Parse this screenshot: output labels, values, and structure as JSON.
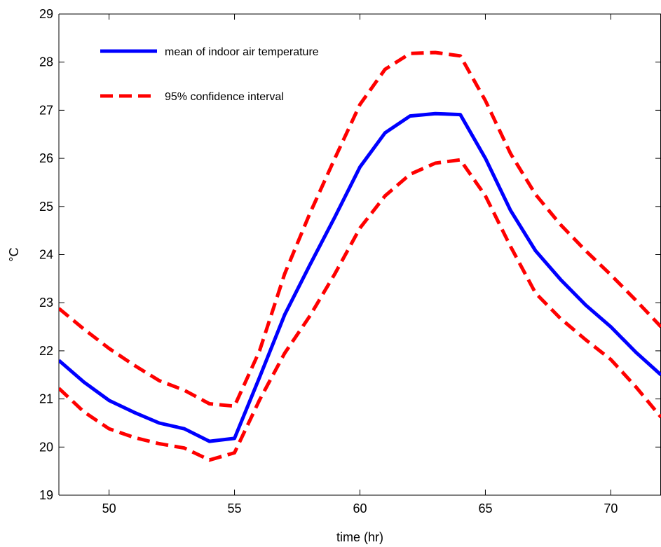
{
  "chart_data": {
    "type": "line",
    "xlabel": "time (hr)",
    "ylabel": "°C",
    "xlim": [
      48,
      72
    ],
    "ylim": [
      19,
      29
    ],
    "xticks": [
      50,
      55,
      60,
      65,
      70
    ],
    "yticks": [
      19,
      20,
      21,
      22,
      23,
      24,
      25,
      26,
      27,
      28,
      29
    ],
    "grid": false,
    "legend_position": "top-left",
    "x": [
      48,
      49,
      50,
      51,
      52,
      53,
      54,
      55,
      56,
      57,
      58,
      59,
      60,
      61,
      62,
      63,
      64,
      65,
      66,
      67,
      68,
      69,
      70,
      71,
      72
    ],
    "series": [
      {
        "name": "mean of indoor air temperature",
        "color": "#0000ff",
        "style": "solid",
        "values": [
          21.8,
          21.35,
          20.97,
          20.72,
          20.5,
          20.38,
          20.12,
          20.18,
          21.45,
          22.75,
          23.78,
          24.78,
          25.82,
          26.53,
          26.88,
          26.93,
          26.91,
          26.0,
          24.92,
          24.08,
          23.48,
          22.95,
          22.5,
          21.97,
          21.5
        ]
      },
      {
        "name": "95% confidence  interval",
        "color": "#ff0000",
        "style": "dashed",
        "values": [
          22.88,
          22.45,
          22.05,
          21.7,
          21.38,
          21.18,
          20.9,
          20.85,
          22.0,
          23.6,
          24.85,
          26.0,
          27.12,
          27.85,
          28.18,
          28.2,
          28.13,
          27.2,
          26.1,
          25.25,
          24.62,
          24.08,
          23.58,
          23.05,
          22.5
        ]
      },
      {
        "name": "",
        "color": "#ff0000",
        "style": "dashed",
        "values": [
          21.22,
          20.73,
          20.38,
          20.2,
          20.07,
          19.98,
          19.73,
          19.88,
          20.98,
          21.95,
          22.72,
          23.6,
          24.55,
          25.22,
          25.67,
          25.9,
          25.97,
          25.22,
          24.17,
          23.2,
          22.67,
          22.23,
          21.82,
          21.25,
          20.62
        ]
      }
    ]
  }
}
